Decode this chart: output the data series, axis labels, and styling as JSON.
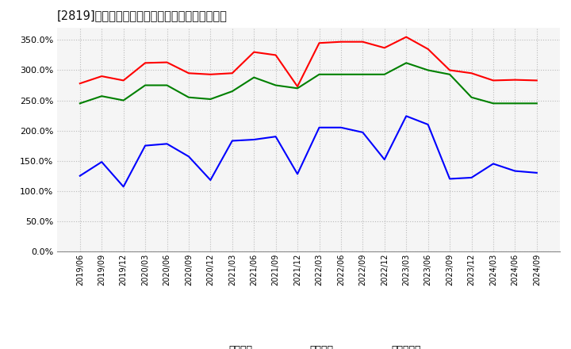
{
  "title": "[2819]　流動比率、当座比率、現預金比率の推移",
  "x_labels": [
    "2019/06",
    "2019/09",
    "2019/12",
    "2020/03",
    "2020/06",
    "2020/09",
    "2020/12",
    "2021/03",
    "2021/06",
    "2021/09",
    "2021/12",
    "2022/03",
    "2022/06",
    "2022/09",
    "2022/12",
    "2023/03",
    "2023/06",
    "2023/09",
    "2023/12",
    "2024/03",
    "2024/06",
    "2024/09"
  ],
  "ryudo": [
    278,
    290,
    283,
    312,
    313,
    295,
    293,
    295,
    330,
    325,
    273,
    345,
    347,
    347,
    337,
    355,
    335,
    300,
    295,
    283,
    284,
    283
  ],
  "toza": [
    245,
    257,
    250,
    275,
    275,
    255,
    252,
    265,
    288,
    275,
    270,
    293,
    293,
    293,
    293,
    312,
    300,
    293,
    255,
    245,
    245,
    245
  ],
  "genkin": [
    125,
    148,
    107,
    175,
    178,
    157,
    118,
    183,
    185,
    190,
    128,
    205,
    205,
    197,
    152,
    224,
    210,
    120,
    122,
    145,
    133,
    130
  ],
  "ryudo_color": "#ff0000",
  "toza_color": "#008000",
  "genkin_color": "#0000ff",
  "ylim": [
    0,
    370
  ],
  "yticks": [
    0,
    50,
    100,
    150,
    200,
    250,
    300,
    350
  ],
  "background_color": "#ffffff",
  "plot_bg_color": "#f5f5f5",
  "grid_color": "#bbbbbb",
  "legend_labels": [
    "流動比率",
    "当座比率",
    "現預金比率"
  ]
}
